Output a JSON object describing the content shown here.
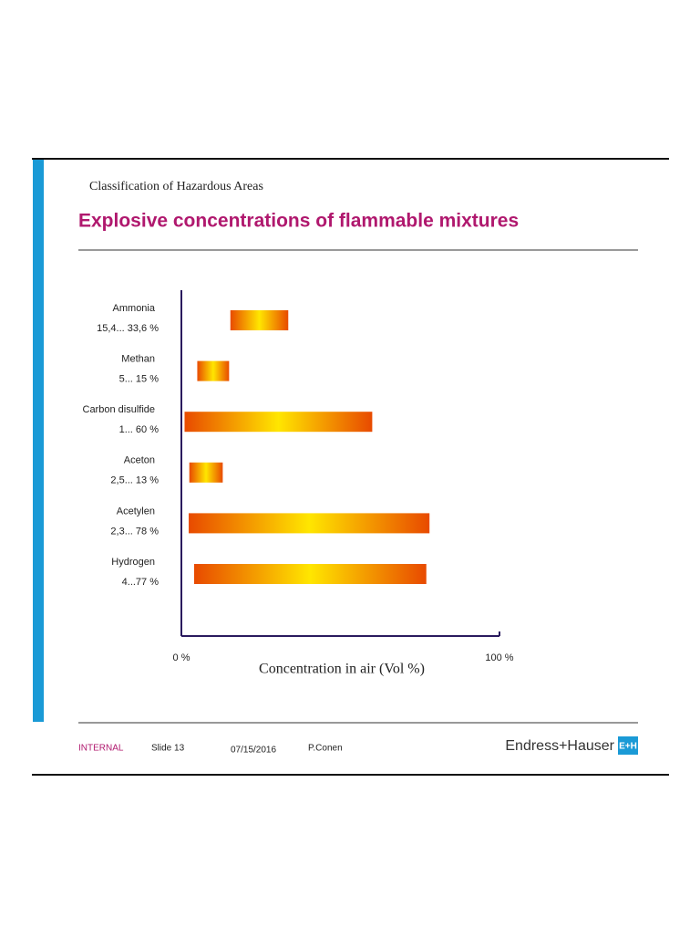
{
  "slide": {
    "header": "Classification of Hazardous Areas",
    "footer": {
      "classification": "INTERNAL",
      "slide": "Slide 13",
      "date": "07/15/2016",
      "author": "P.Conen",
      "brand": "Endress+Hauser",
      "logo": "E+H"
    }
  },
  "chart_data": {
    "type": "range-bar",
    "title": "Explosive concentrations of flammable mixtures",
    "categories": [
      "Ammonia",
      "Methan",
      "Carbon disulfide",
      "Aceton",
      "Acetylen",
      "Hydrogen"
    ],
    "low": [
      15.4,
      5,
      1,
      2.5,
      2.3,
      4
    ],
    "high": [
      33.6,
      15,
      60,
      13,
      78,
      77
    ],
    "value_labels": [
      "15,4... 33,6 %",
      "5... 15 %",
      "1... 60 %",
      "2,5... 13 %",
      "2,3... 78 %",
      "4...77 %"
    ],
    "xlim": [
      0,
      100
    ],
    "xticks": [
      {
        "value": 0,
        "label": "0 %"
      },
      {
        "value": 100,
        "label": "100 %"
      }
    ],
    "x_label": "Concentration in air (Vol %)",
    "colors": [
      "#e84a00",
      "#ffe600"
    ]
  }
}
